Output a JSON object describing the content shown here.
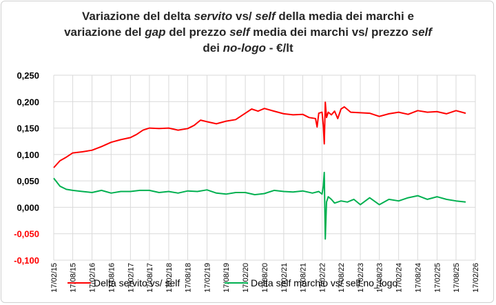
{
  "title": {
    "line1_a": "Variazione del delta ",
    "line1_b": "servito",
    "line1_c": " vs/ ",
    "line1_d": "self",
    "line1_e": " della media dei marchi e",
    "line2_a": "variazione del ",
    "line2_b": "gap",
    "line2_c": " del prezzo ",
    "line2_d": "self",
    "line2_e": " media dei marchi vs/ prezzo ",
    "line2_f": "self",
    "line3_a": "dei ",
    "line3_b": "no-logo",
    "line3_c": " - €/lt"
  },
  "chart_data": {
    "type": "line",
    "ylim": [
      -0.1,
      0.25
    ],
    "yticks": [
      -0.1,
      -0.05,
      0,
      0.05,
      0.1,
      0.15,
      0.2,
      0.25
    ],
    "ytick_labels": [
      "-0,100",
      "-0,050",
      "0,000",
      "0,050",
      "0,100",
      "0,150",
      "0,200",
      "0,250"
    ],
    "negative_tick_color": "#ff0000",
    "xtick_labels": [
      "17/02/15",
      "17/08/15",
      "17/02/16",
      "17/08/16",
      "17/02/17",
      "17/08/17",
      "17/02/18",
      "17/08/18",
      "17/02/19",
      "17/08/19",
      "17/02/20",
      "17/08/20",
      "17/02/21",
      "17/08/21",
      "17/02/22",
      "17/08/22",
      "17/02/23",
      "17/08/23",
      "17/02/24",
      "17/08/24",
      "17/02/25",
      "17/08/25",
      "17/02/26"
    ],
    "grid": true,
    "legend_position": "bottom",
    "series": [
      {
        "name": "Delta servito vs/ self",
        "color": "#ff0000",
        "points": [
          [
            "17/02/15",
            0.075
          ],
          [
            "17/04/15",
            0.088
          ],
          [
            "17/06/15",
            0.095
          ],
          [
            "17/08/15",
            0.103
          ],
          [
            "17/11/15",
            0.105
          ],
          [
            "17/02/16",
            0.108
          ],
          [
            "17/05/16",
            0.115
          ],
          [
            "17/08/16",
            0.123
          ],
          [
            "17/11/16",
            0.128
          ],
          [
            "17/02/17",
            0.132
          ],
          [
            "17/04/17",
            0.138
          ],
          [
            "17/06/17",
            0.146
          ],
          [
            "17/08/17",
            0.15
          ],
          [
            "17/11/17",
            0.149
          ],
          [
            "17/02/18",
            0.15
          ],
          [
            "17/05/18",
            0.146
          ],
          [
            "17/08/18",
            0.149
          ],
          [
            "17/10/18",
            0.155
          ],
          [
            "17/12/18",
            0.165
          ],
          [
            "17/02/19",
            0.162
          ],
          [
            "17/05/19",
            0.158
          ],
          [
            "17/08/19",
            0.163
          ],
          [
            "17/11/19",
            0.166
          ],
          [
            "17/02/20",
            0.178
          ],
          [
            "17/04/20",
            0.186
          ],
          [
            "17/06/20",
            0.182
          ],
          [
            "17/08/20",
            0.187
          ],
          [
            "17/11/20",
            0.182
          ],
          [
            "17/02/21",
            0.177
          ],
          [
            "17/05/21",
            0.175
          ],
          [
            "17/08/21",
            0.176
          ],
          [
            "17/10/21",
            0.17
          ],
          [
            "17/12/21",
            0.168
          ],
          [
            "01/01/22",
            0.152
          ],
          [
            "17/01/22",
            0.178
          ],
          [
            "17/02/22",
            0.18
          ],
          [
            "01/03/22",
            0.155
          ],
          [
            "10/03/22",
            0.12
          ],
          [
            "20/03/22",
            0.199
          ],
          [
            "01/04/22",
            0.17
          ],
          [
            "17/04/22",
            0.18
          ],
          [
            "17/05/22",
            0.175
          ],
          [
            "17/06/22",
            0.182
          ],
          [
            "17/07/22",
            0.168
          ],
          [
            "17/08/22",
            0.186
          ],
          [
            "17/09/22",
            0.19
          ],
          [
            "17/11/22",
            0.18
          ],
          [
            "17/02/23",
            0.179
          ],
          [
            "17/05/23",
            0.178
          ],
          [
            "17/08/23",
            0.172
          ],
          [
            "17/11/23",
            0.177
          ],
          [
            "17/02/24",
            0.18
          ],
          [
            "17/05/24",
            0.176
          ],
          [
            "17/08/24",
            0.183
          ],
          [
            "17/11/24",
            0.18
          ],
          [
            "17/02/25",
            0.181
          ],
          [
            "17/05/25",
            0.177
          ],
          [
            "17/08/25",
            0.183
          ],
          [
            "17/11/25",
            0.178
          ]
        ]
      },
      {
        "name": "Delta self marchio vs/ self no_logo",
        "color": "#00b050",
        "points": [
          [
            "17/02/15",
            0.055
          ],
          [
            "17/04/15",
            0.04
          ],
          [
            "17/06/15",
            0.034
          ],
          [
            "17/08/15",
            0.032
          ],
          [
            "17/11/15",
            0.03
          ],
          [
            "17/02/16",
            0.028
          ],
          [
            "17/05/16",
            0.032
          ],
          [
            "17/08/16",
            0.027
          ],
          [
            "17/11/16",
            0.03
          ],
          [
            "17/02/17",
            0.03
          ],
          [
            "17/05/17",
            0.032
          ],
          [
            "17/08/17",
            0.032
          ],
          [
            "17/11/17",
            0.028
          ],
          [
            "17/02/18",
            0.03
          ],
          [
            "17/05/18",
            0.027
          ],
          [
            "17/08/18",
            0.031
          ],
          [
            "17/11/18",
            0.03
          ],
          [
            "17/02/19",
            0.033
          ],
          [
            "17/05/19",
            0.027
          ],
          [
            "17/08/19",
            0.025
          ],
          [
            "17/11/19",
            0.028
          ],
          [
            "17/02/20",
            0.028
          ],
          [
            "17/05/20",
            0.024
          ],
          [
            "17/08/20",
            0.026
          ],
          [
            "17/11/20",
            0.032
          ],
          [
            "17/02/21",
            0.03
          ],
          [
            "17/05/21",
            0.029
          ],
          [
            "17/08/21",
            0.031
          ],
          [
            "17/11/21",
            0.027
          ],
          [
            "17/01/22",
            0.03
          ],
          [
            "17/02/22",
            0.025
          ],
          [
            "01/03/22",
            0.04
          ],
          [
            "10/03/22",
            0.066
          ],
          [
            "20/03/22",
            -0.06
          ],
          [
            "01/04/22",
            0.01
          ],
          [
            "17/04/22",
            0.02
          ],
          [
            "17/05/22",
            0.015
          ],
          [
            "17/06/22",
            0.008
          ],
          [
            "17/08/22",
            0.012
          ],
          [
            "17/10/22",
            0.01
          ],
          [
            "17/12/22",
            0.015
          ],
          [
            "17/02/23",
            0.005
          ],
          [
            "17/05/23",
            0.018
          ],
          [
            "17/08/23",
            0.005
          ],
          [
            "17/11/23",
            0.015
          ],
          [
            "17/02/24",
            0.012
          ],
          [
            "17/05/24",
            0.018
          ],
          [
            "17/08/24",
            0.022
          ],
          [
            "17/11/24",
            0.015
          ],
          [
            "17/02/25",
            0.02
          ],
          [
            "17/05/25",
            0.015
          ],
          [
            "17/08/25",
            0.012
          ],
          [
            "17/11/25",
            0.01
          ]
        ]
      }
    ]
  }
}
